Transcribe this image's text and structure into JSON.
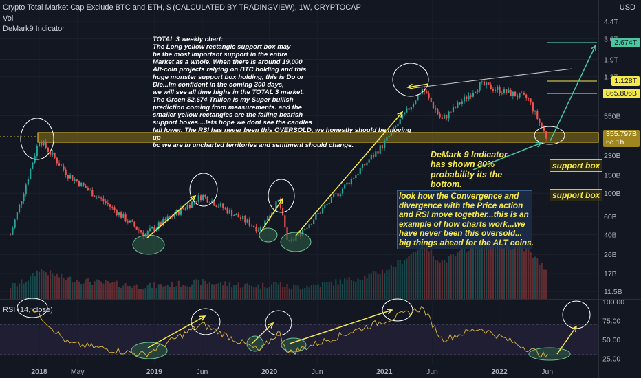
{
  "header": {
    "title": "Crypto Total Market Cap Exclude BTC and ETH, $ (CALCULATED BY TRADINGVIEW), 1W, CRYPTOCAP",
    "vol_label": "Vol",
    "indicator_label": "DeMark9 Indicator",
    "currency": "USD"
  },
  "notes": {
    "main": "TOTAL 3 weekly chart:\nThe Long yellow rectangle support box may\nbe the most important support in the entire\nMarket as a whole. When there is around 19,000\nAlt-coin projects relying on BTC holding and this\nhuge monster support box holding, this is Do or\nDie...Im confident in the coming 300 days,\nwe will see all time highs in the TOTAL 3 market.\nThe Green $2.674 Trillion is my Super bullish\nprediction coming from measurements. and the\nsmaller yellow rectangles are the falling bearish\nsupport boxes....lets hope we dont see the candles\nfall lower. The RSI has never been this OVERSOLD, we honestly should be moving up\nbc we are in uncharted territories and sentiment should change.",
    "demark": "DeMark 9 Indicator\nhas shown 80%\nprobability its the\nbottom.",
    "convergence": "look how the Convergence and\ndivergence with the Price action\nand RSI move together...this is an\nexample of how charts work...we\nhave never been this oversold...\nbig things ahead for the ALT coins.",
    "support_box_1": "support box",
    "support_box_2": "support box"
  },
  "price_tags": {
    "target": "2.674T",
    "ath": "1.128T",
    "level": "865.806B",
    "current": "355.797B",
    "countdown": "6d 1h"
  },
  "colors": {
    "background": "#131722",
    "up": "#26a69a",
    "down": "#ef5350",
    "annotation_yellow": "#f5e94a",
    "support_box": "#a0861e",
    "target_green": "#4bc6a0",
    "rsi_line": "#d4b13a",
    "rsi_band": "#2a2540"
  },
  "chart_data": [
    {
      "type": "candlestick",
      "title": "Crypto Total Market Cap Exclude BTC and ETH, $ (CALCULATED BY TRADINGVIEW), 1W, CRYPTOCAP",
      "y_scale": "log",
      "y_ticks": [
        "4.4T",
        "3.0T",
        "1.9T",
        "1.3T",
        "550B",
        "230B",
        "150B",
        "100B",
        "60B",
        "40B",
        "26B",
        "17B",
        "11.5B"
      ],
      "x_ticks": [
        "2018",
        "May",
        "2019",
        "Jun",
        "2020",
        "Jun",
        "2021",
        "Jun",
        "2022",
        "Jun"
      ],
      "approx_close_path": [
        {
          "date": "2017-10",
          "value": 40
        },
        {
          "date": "2017-12",
          "value": 160
        },
        {
          "date": "2018-01",
          "value": 330
        },
        {
          "date": "2018-04",
          "value": 150
        },
        {
          "date": "2018-08",
          "value": 80
        },
        {
          "date": "2018-12",
          "value": 40
        },
        {
          "date": "2019-06",
          "value": 95
        },
        {
          "date": "2019-12",
          "value": 45
        },
        {
          "date": "2020-02",
          "value": 85
        },
        {
          "date": "2020-03",
          "value": 32
        },
        {
          "date": "2020-09",
          "value": 120
        },
        {
          "date": "2021-01",
          "value": 300
        },
        {
          "date": "2021-05",
          "value": 1000
        },
        {
          "date": "2021-07",
          "value": 500
        },
        {
          "date": "2021-11",
          "value": 1100
        },
        {
          "date": "2022-04",
          "value": 800
        },
        {
          "date": "2022-06",
          "value": 330
        }
      ],
      "levels": [
        {
          "label": "2.674T",
          "value": 2674
        },
        {
          "label": "1.128T",
          "value": 1128
        },
        {
          "label": "865.806B",
          "value": 865.8
        },
        {
          "label": "355.797B",
          "value": 355.8
        }
      ],
      "support_zone": [
        330,
        390
      ]
    },
    {
      "type": "line",
      "title": "RSI (14, close)",
      "y_ticks": [
        "100.00",
        "75.00",
        "50.00",
        "25.00"
      ],
      "ylim": [
        20,
        100
      ],
      "approx_values": [
        {
          "date": "2017-12",
          "value": 95
        },
        {
          "date": "2018-04",
          "value": 45
        },
        {
          "date": "2018-12",
          "value": 30
        },
        {
          "date": "2019-06",
          "value": 70
        },
        {
          "date": "2019-12",
          "value": 35
        },
        {
          "date": "2020-02",
          "value": 60
        },
        {
          "date": "2020-03",
          "value": 32
        },
        {
          "date": "2021-05",
          "value": 92
        },
        {
          "date": "2021-07",
          "value": 50
        },
        {
          "date": "2021-11",
          "value": 65
        },
        {
          "date": "2022-06",
          "value": 27
        }
      ]
    }
  ],
  "rsi_header": "RSI (14, close)"
}
